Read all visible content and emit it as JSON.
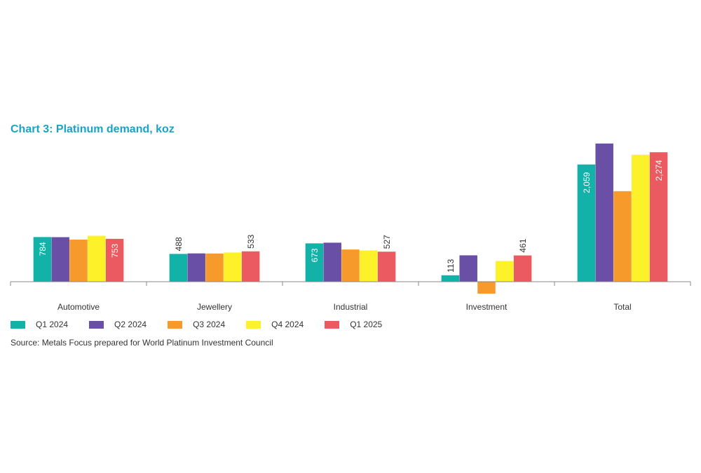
{
  "chart_data": {
    "type": "bar",
    "title": "Chart 3: Platinum demand, koz",
    "categories": [
      "Automotive",
      "Jewellery",
      "Industrial",
      "Investment",
      "Total"
    ],
    "series": [
      {
        "name": "Q1 2024",
        "color": "#12b2a8",
        "values": [
          784,
          488,
          673,
          113,
          2059
        ]
      },
      {
        "name": "Q2 2024",
        "color": "#6a4fa6",
        "values": [
          782,
          497,
          685,
          463,
          2427
        ]
      },
      {
        "name": "Q3 2024",
        "color": "#f59a2b",
        "values": [
          740,
          495,
          565,
          -210,
          1590
        ]
      },
      {
        "name": "Q4 2024",
        "color": "#fdf22a",
        "values": [
          806,
          512,
          549,
          363,
          2230
        ]
      },
      {
        "name": "Q1 2025",
        "color": "#eb5a61",
        "values": [
          753,
          533,
          527,
          461,
          2274
        ]
      }
    ],
    "data_labels": [
      {
        "series": 0,
        "category": 0,
        "text": "784"
      },
      {
        "series": 4,
        "category": 0,
        "text": "753"
      },
      {
        "series": 0,
        "category": 1,
        "text": "488"
      },
      {
        "series": 4,
        "category": 1,
        "text": "533"
      },
      {
        "series": 0,
        "category": 2,
        "text": "673"
      },
      {
        "series": 4,
        "category": 2,
        "text": "527"
      },
      {
        "series": 0,
        "category": 3,
        "text": "113"
      },
      {
        "series": 4,
        "category": 3,
        "text": "461"
      },
      {
        "series": 0,
        "category": 4,
        "text": "2,059"
      },
      {
        "series": 4,
        "category": 4,
        "text": "2,274"
      }
    ],
    "legend_position": "bottom-left",
    "grid": false
  },
  "source": "Source: Metals Focus prepared for World Platinum Investment Council"
}
